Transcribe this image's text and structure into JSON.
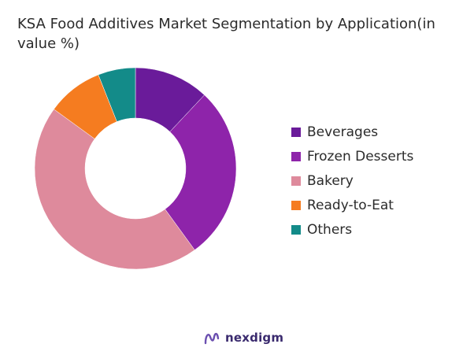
{
  "chart_data": {
    "type": "pie",
    "title": "KSA Food Additives Market Segmentation by Application(in value %)",
    "donut": true,
    "legend_position": "right",
    "categories": [
      "Beverages",
      "Frozen Desserts",
      "Bakery",
      "Ready-to-Eat",
      "Others"
    ],
    "values": [
      12,
      28,
      45,
      9,
      6
    ],
    "colors": [
      "#6a1b9a",
      "#8e24aa",
      "#de8a9c",
      "#f57c20",
      "#138b89"
    ]
  },
  "brand": {
    "name": "nexdigm",
    "mark_color": "#6b4fb0"
  }
}
